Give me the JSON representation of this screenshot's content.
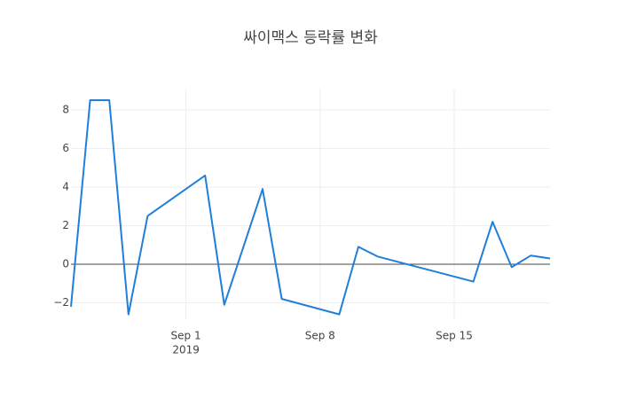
{
  "chart_data": {
    "type": "line",
    "title": "싸이맥스 등락률 변화",
    "x": [
      "2019-08-26",
      "2019-08-27",
      "2019-08-28",
      "2019-08-29",
      "2019-08-30",
      "2019-09-02",
      "2019-09-03",
      "2019-09-05",
      "2019-09-06",
      "2019-09-09",
      "2019-09-10",
      "2019-09-11",
      "2019-09-16",
      "2019-09-17",
      "2019-09-18",
      "2019-09-19",
      "2019-09-20"
    ],
    "values": [
      -2.2,
      8.5,
      8.5,
      -2.6,
      2.5,
      4.6,
      -2.1,
      3.9,
      -1.8,
      -2.6,
      0.9,
      0.4,
      -0.9,
      2.2,
      -0.15,
      0.45,
      0.3
    ],
    "color": "#1f7fd9",
    "xlim": [
      "2019-08-26",
      "2019-09-20"
    ],
    "xticks": [
      {
        "value": "2019-09-01",
        "label": "Sep 1",
        "sublabel": "2019"
      },
      {
        "value": "2019-09-08",
        "label": "Sep 8"
      },
      {
        "value": "2019-09-15",
        "label": "Sep 15"
      }
    ],
    "ylim": [
      -2.85,
      9.1
    ],
    "yticks": [
      {
        "value": -2,
        "label": "−2"
      },
      0,
      2,
      4,
      6,
      8
    ],
    "grid": true,
    "zeroline": true
  }
}
